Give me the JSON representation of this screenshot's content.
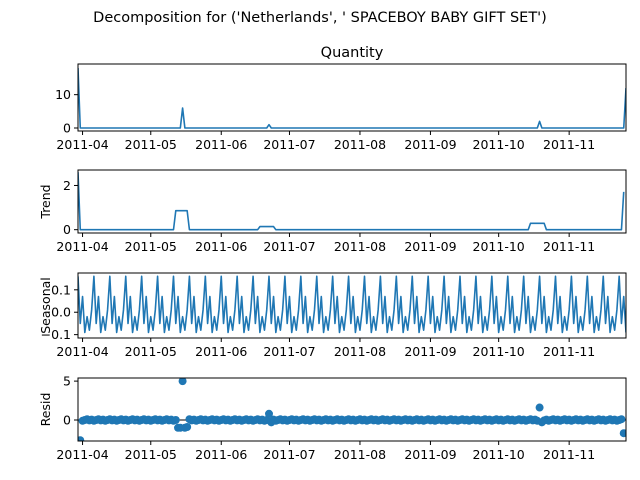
{
  "figure": {
    "suptitle": "Decomposition for ('Netherlands', ' SPACEBOY BABY GIFT SET')"
  },
  "colors": {
    "line": "#1f77b4",
    "axis": "#000000",
    "background": "#ffffff"
  },
  "chart_data": [
    {
      "type": "line",
      "title": "Quantity",
      "ylabel": "",
      "x_range": [
        "2011-03-30",
        "2011-11-26"
      ],
      "ylim": [
        -0.9,
        19.2
      ],
      "y_ticks": [
        0,
        10
      ],
      "x_tick_labels": [
        "2011-04",
        "2011-05",
        "2011-06",
        "2011-07",
        "2011-08",
        "2011-09",
        "2011-10",
        "2011-11"
      ],
      "series": [
        {
          "x": [
            "2011-03-30",
            "2011-03-31",
            "2011-05-14",
            "2011-05-15",
            "2011-05-16",
            "2011-06-21",
            "2011-06-22",
            "2011-06-23",
            "2011-10-18",
            "2011-10-19",
            "2011-10-20",
            "2011-11-25",
            "2011-11-26"
          ],
          "values": [
            18,
            0,
            0,
            6,
            0,
            0,
            1,
            0,
            0,
            2,
            0,
            0,
            12
          ]
        }
      ]
    },
    {
      "type": "line",
      "title": "",
      "ylabel": "Trend",
      "x_range": [
        "2011-03-30",
        "2011-11-26"
      ],
      "ylim": [
        -0.15,
        2.7
      ],
      "y_ticks": [
        0,
        2
      ],
      "x_tick_labels": [
        "2011-04",
        "2011-05",
        "2011-06",
        "2011-07",
        "2011-08",
        "2011-09",
        "2011-10",
        "2011-11"
      ],
      "series": [
        {
          "x": [
            "2011-03-30",
            "2011-03-31",
            "2011-05-11",
            "2011-05-12",
            "2011-05-17",
            "2011-05-18",
            "2011-06-17",
            "2011-06-18",
            "2011-06-24",
            "2011-06-25",
            "2011-10-14",
            "2011-10-15",
            "2011-10-21",
            "2011-10-22",
            "2011-11-24",
            "2011-11-25"
          ],
          "values": [
            2.6,
            0,
            0,
            0.86,
            0.86,
            0,
            0,
            0.14,
            0.14,
            0,
            0,
            0.29,
            0.29,
            0,
            0,
            1.71
          ]
        }
      ]
    },
    {
      "type": "line",
      "title": "",
      "ylabel": "Seasonal",
      "x_range": [
        "2011-03-30",
        "2011-11-26"
      ],
      "ylim": [
        -0.115,
        0.175
      ],
      "y_ticks": [
        -0.1,
        0.0,
        0.1
      ],
      "y_tick_labels": [
        "−0.1",
        "0.0",
        "0.1"
      ],
      "x_tick_labels": [
        "2011-04",
        "2011-05",
        "2011-06",
        "2011-07",
        "2011-08",
        "2011-09",
        "2011-10",
        "2011-11"
      ],
      "period_days": 7,
      "weekly_pattern": [
        0.16,
        -0.05,
        0.07,
        -0.09,
        -0.02,
        -0.08,
        0.01
      ]
    },
    {
      "type": "scatter",
      "title": "",
      "ylabel": "Resid",
      "x_range": [
        "2011-03-30",
        "2011-11-26"
      ],
      "ylim": [
        -2.7,
        5.4
      ],
      "y_ticks": [
        0,
        5
      ],
      "x_tick_labels": [
        "2011-04",
        "2011-05",
        "2011-06",
        "2011-07",
        "2011-08",
        "2011-09",
        "2011-10",
        "2011-11"
      ],
      "baseline": 0,
      "outliers": [
        {
          "x": "2011-03-31",
          "value": -2.6
        },
        {
          "x": "2011-05-15",
          "value": 5.0
        },
        {
          "x": "2011-05-13",
          "value": -1.0
        },
        {
          "x": "2011-05-14",
          "value": -1.0
        },
        {
          "x": "2011-05-16",
          "value": -1.0
        },
        {
          "x": "2011-05-17",
          "value": -0.9
        },
        {
          "x": "2011-06-22",
          "value": 0.8
        },
        {
          "x": "2011-06-23",
          "value": -0.3
        },
        {
          "x": "2011-10-19",
          "value": 1.6
        },
        {
          "x": "2011-10-20",
          "value": -0.3
        },
        {
          "x": "2011-11-25",
          "value": -1.7
        }
      ]
    }
  ]
}
